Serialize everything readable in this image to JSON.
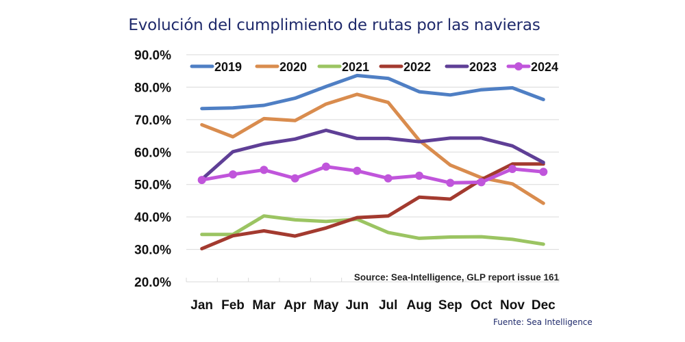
{
  "title": "Evolución del cumplimiento de rutas por las navieras",
  "footnote": "Fuente: Sea Intelligence",
  "chart_data": {
    "type": "line",
    "title": "Evolución del cumplimiento de rutas por las navieras",
    "xlabel": "",
    "ylabel": "",
    "ylim": [
      20,
      90
    ],
    "yticks": [
      "20.0%",
      "30.0%",
      "40.0%",
      "50.0%",
      "60.0%",
      "70.0%",
      "80.0%",
      "90.0%"
    ],
    "ytick_values": [
      20,
      30,
      40,
      50,
      60,
      70,
      80,
      90
    ],
    "grid": true,
    "legend_position": "top",
    "annotation": "Source: Sea-Intelligence, GLP report issue 161",
    "categories": [
      "Jan",
      "Feb",
      "Mar",
      "Apr",
      "May",
      "Jun",
      "Jul",
      "Aug",
      "Sep",
      "Oct",
      "Nov",
      "Dec"
    ],
    "series": [
      {
        "name": "2019",
        "color": "#4f7fc4",
        "markers": false,
        "values": [
          73.4,
          73.6,
          74.4,
          76.6,
          80.2,
          83.6,
          82.7,
          78.6,
          77.6,
          79.2,
          79.8,
          76.2
        ]
      },
      {
        "name": "2020",
        "color": "#d98c4e",
        "markers": false,
        "values": [
          68.4,
          64.7,
          70.3,
          69.7,
          74.8,
          77.8,
          75.3,
          63.6,
          56.0,
          52.1,
          50.2,
          44.2
        ]
      },
      {
        "name": "2021",
        "color": "#9bc462",
        "markers": false,
        "values": [
          34.6,
          34.6,
          40.3,
          39.1,
          38.6,
          39.3,
          35.2,
          33.4,
          33.8,
          33.9,
          33.1,
          31.6
        ]
      },
      {
        "name": "2022",
        "color": "#a33a2f",
        "markers": false,
        "values": [
          30.2,
          34.2,
          35.7,
          34.1,
          36.6,
          39.8,
          40.3,
          46.1,
          45.5,
          51.5,
          56.3,
          56.3
        ]
      },
      {
        "name": "2023",
        "color": "#5f3f96",
        "markers": false,
        "values": [
          51.6,
          60.1,
          62.5,
          64.0,
          66.7,
          64.2,
          64.2,
          63.2,
          64.3,
          64.3,
          61.9,
          56.8
        ]
      },
      {
        "name": "2024",
        "color": "#c055db",
        "markers": true,
        "values": [
          51.4,
          53.1,
          54.5,
          51.9,
          55.5,
          54.2,
          51.9,
          52.7,
          50.5,
          50.7,
          54.8,
          53.9
        ]
      }
    ]
  }
}
